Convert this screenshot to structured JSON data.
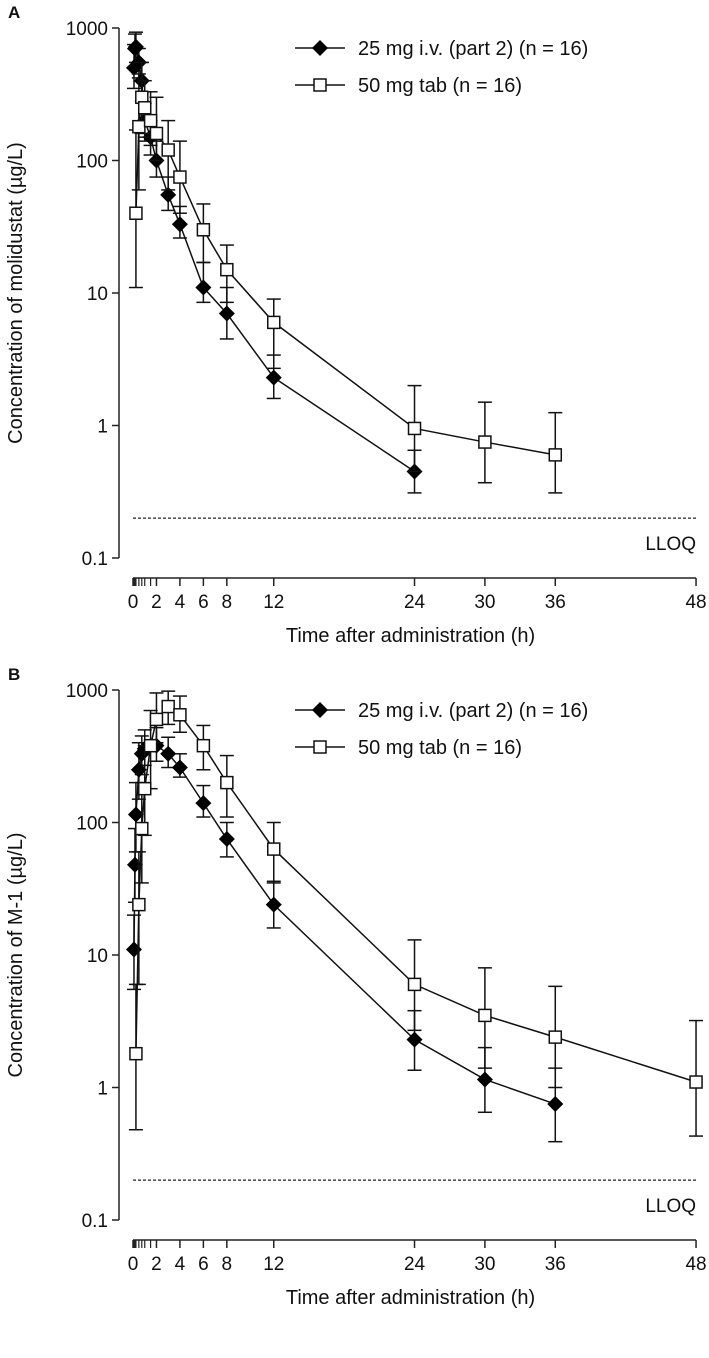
{
  "chart_data": [
    {
      "panel_label": "A",
      "type": "line",
      "xlabel": "Time after administration (h)",
      "ylabel": "Concentration of molidustat (µg/L)",
      "yscale": "log",
      "ylim": [
        0.1,
        1000
      ],
      "xlim": [
        0,
        48
      ],
      "xticks": [
        0,
        2,
        4,
        6,
        8,
        12,
        24,
        30,
        36,
        48
      ],
      "yticks": [
        0.1,
        1,
        10,
        100,
        1000
      ],
      "ytick_labels": [
        "0.1",
        "1",
        "10",
        "100",
        "1000"
      ],
      "lloq": {
        "value": 0.2,
        "label": "LLOQ"
      },
      "legend_position": "top-right",
      "series": [
        {
          "name": "25 mg i.v. (part 2) (n = 16)",
          "marker": "filled-diamond",
          "x": [
            0.083,
            0.167,
            0.25,
            0.5,
            0.75,
            1,
            1.5,
            2,
            3,
            4,
            6,
            8,
            12,
            24
          ],
          "y": [
            500,
            700,
            720,
            550,
            400,
            200,
            150,
            100,
            55,
            33,
            11,
            7,
            2.3,
            0.45
          ],
          "lo": [
            350,
            500,
            550,
            420,
            280,
            140,
            110,
            75,
            42,
            26,
            8.5,
            4.5,
            1.6,
            0.31
          ],
          "hi": [
            750,
            900,
            930,
            700,
            550,
            270,
            200,
            140,
            75,
            45,
            17,
            11,
            3.4,
            0.65
          ]
        },
        {
          "name": "50 mg tab (n = 16)",
          "marker": "open-square",
          "x": [
            0.25,
            0.5,
            0.75,
            1,
            1.5,
            2,
            3,
            4,
            6,
            8,
            12,
            24,
            30,
            36
          ],
          "y": [
            40,
            180,
            300,
            250,
            200,
            160,
            120,
            75,
            30,
            15,
            6,
            0.95,
            0.75,
            0.6
          ],
          "lo": [
            11,
            60,
            160,
            150,
            130,
            100,
            60,
            40,
            17,
            8.5,
            2.7,
            0.45,
            0.37,
            0.31
          ],
          "hi": [
            170,
            450,
            550,
            400,
            330,
            300,
            200,
            140,
            47,
            23,
            9,
            2,
            1.5,
            1.25
          ]
        }
      ]
    },
    {
      "panel_label": "B",
      "type": "line",
      "xlabel": "Time after administration (h)",
      "ylabel": "Concentration of M-1 (µg/L)",
      "yscale": "log",
      "ylim": [
        0.1,
        1000
      ],
      "xlim": [
        0,
        48
      ],
      "xticks": [
        0,
        2,
        4,
        6,
        8,
        12,
        24,
        30,
        36,
        48
      ],
      "yticks": [
        0.1,
        1,
        10,
        100,
        1000
      ],
      "ytick_labels": [
        "0.1",
        "1",
        "10",
        "100",
        "1000"
      ],
      "lloq": {
        "value": 0.2,
        "label": "LLOQ"
      },
      "legend_position": "top-right",
      "series": [
        {
          "name": "25 mg i.v. (part 2) (n = 16)",
          "marker": "filled-diamond",
          "x": [
            0.083,
            0.167,
            0.25,
            0.5,
            0.75,
            1,
            2,
            3,
            4,
            6,
            8,
            12,
            24,
            30,
            36
          ],
          "y": [
            11,
            48,
            115,
            250,
            330,
            360,
            380,
            330,
            260,
            140,
            75,
            24,
            2.3,
            1.15,
            0.75
          ],
          "lo": [
            5.5,
            25,
            60,
            150,
            230,
            270,
            290,
            260,
            220,
            110,
            55,
            16,
            1.35,
            0.65,
            0.39
          ],
          "hi": [
            20,
            90,
            200,
            400,
            450,
            500,
            520,
            440,
            330,
            190,
            100,
            36,
            3.8,
            2,
            1.4
          ]
        },
        {
          "name": "50 mg tab (n = 16)",
          "marker": "open-square",
          "x": [
            0.25,
            0.5,
            0.75,
            1,
            1.5,
            2,
            3,
            4,
            6,
            8,
            12,
            24,
            30,
            36,
            48
          ],
          "y": [
            1.8,
            24,
            90,
            180,
            380,
            600,
            750,
            650,
            380,
            200,
            63,
            6,
            3.5,
            2.4,
            1.1
          ],
          "lo": [
            0.48,
            6,
            35,
            80,
            180,
            400,
            550,
            480,
            250,
            110,
            35,
            2.7,
            1.4,
            1,
            0.43
          ],
          "hi": [
            6,
            60,
            200,
            380,
            700,
            950,
            980,
            900,
            540,
            320,
            100,
            13,
            8,
            5.8,
            3.2
          ]
        }
      ]
    }
  ]
}
